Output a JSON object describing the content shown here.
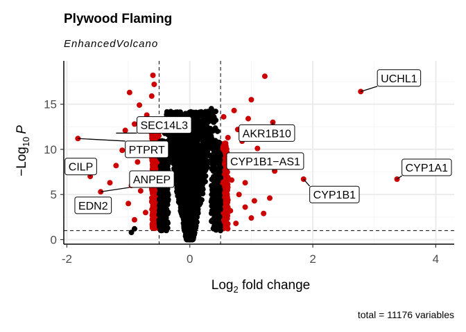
{
  "chart_data": {
    "type": "scatter",
    "title": "Plywood Flaming",
    "subtitle": "EnhancedVolcano",
    "xlabel_main": "Log",
    "xlabel_sub": "2",
    "xlabel_rest": " fold change",
    "ylabel_minus": "−",
    "ylabel_log": "Log",
    "ylabel_sub": "10",
    "ylabel_var": "P",
    "caption": "total = 11176 variables",
    "xlim": [
      -2.05,
      4.3
    ],
    "ylim": [
      -0.5,
      19.8
    ],
    "x_ticks": [
      -2,
      0,
      2,
      4
    ],
    "x_tick_labels": [
      "-2",
      "0",
      "2",
      "4"
    ],
    "y_ticks": [
      0,
      5,
      10,
      15
    ],
    "y_tick_labels": [
      "0",
      "5",
      "10",
      "15"
    ],
    "fc_cutoff": 0.5,
    "p_cutoff_log10": 1.0,
    "grid": true,
    "colors": {
      "significant": "#cc0000",
      "not_significant": "#000000",
      "grid_major": "#ebebeb",
      "grid_minor": "#f5f5f5"
    },
    "points": [
      {
        "x": 2.78,
        "y": 16.4,
        "sig": true
      },
      {
        "x": 3.37,
        "y": 6.7,
        "sig": true
      },
      {
        "x": 1.85,
        "y": 6.7,
        "sig": true
      },
      {
        "x": 1.22,
        "y": 18.1,
        "sig": true
      },
      {
        "x": 1.0,
        "y": 15.5,
        "sig": true
      },
      {
        "x": 1.35,
        "y": 13.0,
        "sig": true
      },
      {
        "x": 0.95,
        "y": 13.4,
        "sig": true
      },
      {
        "x": 0.78,
        "y": 12.2,
        "sig": true
      },
      {
        "x": 1.38,
        "y": 7.6,
        "sig": true
      },
      {
        "x": 1.15,
        "y": 8.4,
        "sig": true
      },
      {
        "x": 0.9,
        "y": 6.3,
        "sig": true
      },
      {
        "x": 0.7,
        "y": 9.2,
        "sig": true
      },
      {
        "x": 0.62,
        "y": 11.3,
        "sig": true
      },
      {
        "x": 0.58,
        "y": 7.5,
        "sig": true
      },
      {
        "x": 0.8,
        "y": 5.0,
        "sig": true
      },
      {
        "x": 1.05,
        "y": 4.3,
        "sig": true
      },
      {
        "x": 0.66,
        "y": 3.2,
        "sig": true
      },
      {
        "x": 0.9,
        "y": 3.6,
        "sig": true
      },
      {
        "x": 1.3,
        "y": 4.6,
        "sig": true
      },
      {
        "x": 0.75,
        "y": 1.8,
        "sig": true
      },
      {
        "x": 1.0,
        "y": 2.4,
        "sig": true
      },
      {
        "x": 0.56,
        "y": 2.1,
        "sig": true
      },
      {
        "x": 0.6,
        "y": 5.6,
        "sig": true
      },
      {
        "x": 1.1,
        "y": 10.1,
        "sig": true
      },
      {
        "x": 0.85,
        "y": 10.9,
        "sig": true
      },
      {
        "x": 0.72,
        "y": 14.3,
        "sig": true
      },
      {
        "x": 0.55,
        "y": 13.6,
        "sig": true
      },
      {
        "x": 1.45,
        "y": 11.2,
        "sig": true
      },
      {
        "x": 0.68,
        "y": 6.6,
        "sig": true
      },
      {
        "x": 1.2,
        "y": 2.9,
        "sig": true
      },
      {
        "x": 0.95,
        "y": 8.9,
        "sig": true
      },
      {
        "x": 0.62,
        "y": 4.4,
        "sig": true
      },
      {
        "x": -1.82,
        "y": 11.2,
        "sig": true
      },
      {
        "x": -1.62,
        "y": 7.0,
        "sig": true
      },
      {
        "x": -1.45,
        "y": 5.3,
        "sig": true
      },
      {
        "x": -1.52,
        "y": 3.9,
        "sig": true
      },
      {
        "x": -0.98,
        "y": 16.3,
        "sig": true
      },
      {
        "x": -0.6,
        "y": 18.2,
        "sig": true
      },
      {
        "x": -0.58,
        "y": 17.2,
        "sig": true
      },
      {
        "x": -0.62,
        "y": 15.9,
        "sig": true
      },
      {
        "x": -0.82,
        "y": 14.9,
        "sig": true
      },
      {
        "x": -0.9,
        "y": 12.8,
        "sig": true
      },
      {
        "x": -0.7,
        "y": 13.8,
        "sig": true
      },
      {
        "x": -1.1,
        "y": 9.9,
        "sig": true
      },
      {
        "x": -0.85,
        "y": 8.6,
        "sig": true
      },
      {
        "x": -1.2,
        "y": 8.2,
        "sig": true
      },
      {
        "x": -0.95,
        "y": 6.0,
        "sig": true
      },
      {
        "x": -0.75,
        "y": 10.5,
        "sig": true
      },
      {
        "x": -1.0,
        "y": 4.0,
        "sig": true
      },
      {
        "x": -0.65,
        "y": 7.3,
        "sig": true
      },
      {
        "x": -0.58,
        "y": 4.8,
        "sig": true
      },
      {
        "x": -0.72,
        "y": 3.0,
        "sig": true
      },
      {
        "x": -0.9,
        "y": 2.2,
        "sig": true
      },
      {
        "x": -0.6,
        "y": 1.6,
        "sig": true
      },
      {
        "x": -1.3,
        "y": 6.3,
        "sig": true
      },
      {
        "x": -0.8,
        "y": 5.4,
        "sig": true
      },
      {
        "x": -0.55,
        "y": 11.7,
        "sig": true
      },
      {
        "x": -0.68,
        "y": 9.4,
        "sig": true
      },
      {
        "x": -1.05,
        "y": 12.1,
        "sig": true
      },
      {
        "x": -0.6,
        "y": 3.6,
        "sig": true
      },
      {
        "x": -0.95,
        "y": 0.8,
        "sig": false
      },
      {
        "x": -0.9,
        "y": 1.2,
        "sig": false
      },
      {
        "x": 0.35,
        "y": 14.5,
        "sig": false
      },
      {
        "x": 0.42,
        "y": 14.2,
        "sig": false
      },
      {
        "x": 0.3,
        "y": 13.8,
        "sig": false
      },
      {
        "x": -0.3,
        "y": 11.5,
        "sig": false
      },
      {
        "x": -0.45,
        "y": 12.6,
        "sig": false
      },
      {
        "x": 0.45,
        "y": 12.0,
        "sig": false
      },
      {
        "x": 0.2,
        "y": 11.0,
        "sig": false
      }
    ],
    "labels": [
      {
        "text": "UCHL1",
        "x": 2.78,
        "y": 16.4,
        "lx": 3.05,
        "ly": 17.9
      },
      {
        "text": "CYP1A1",
        "x": 3.37,
        "y": 6.7,
        "lx": 3.45,
        "ly": 8.0
      },
      {
        "text": "CYP1B1",
        "x": 1.85,
        "y": 6.7,
        "lx": 1.95,
        "ly": 5.0
      },
      {
        "text": "AKR1B10",
        "x": 1.35,
        "y": 13.0,
        "lx": 0.8,
        "ly": 11.8
      },
      {
        "text": "CYP1B1−AS1",
        "x": 1.35,
        "y": 7.6,
        "lx": 0.6,
        "ly": 8.7
      },
      {
        "text": "SEC14L3",
        "x": -1.2,
        "y": 11.8,
        "lx": -0.86,
        "ly": 12.7
      },
      {
        "text": "PTPRT",
        "x": -1.82,
        "y": 11.2,
        "lx": -1.05,
        "ly": 10.0
      },
      {
        "text": "CILP",
        "x": -1.62,
        "y": 7.0,
        "lx": -2.03,
        "ly": 8.1
      },
      {
        "text": "ANPEP",
        "x": -1.45,
        "y": 5.3,
        "lx": -0.98,
        "ly": 6.7
      },
      {
        "text": "EDN2",
        "x": -1.52,
        "y": 3.9,
        "lx": -1.87,
        "ly": 3.8
      }
    ]
  }
}
